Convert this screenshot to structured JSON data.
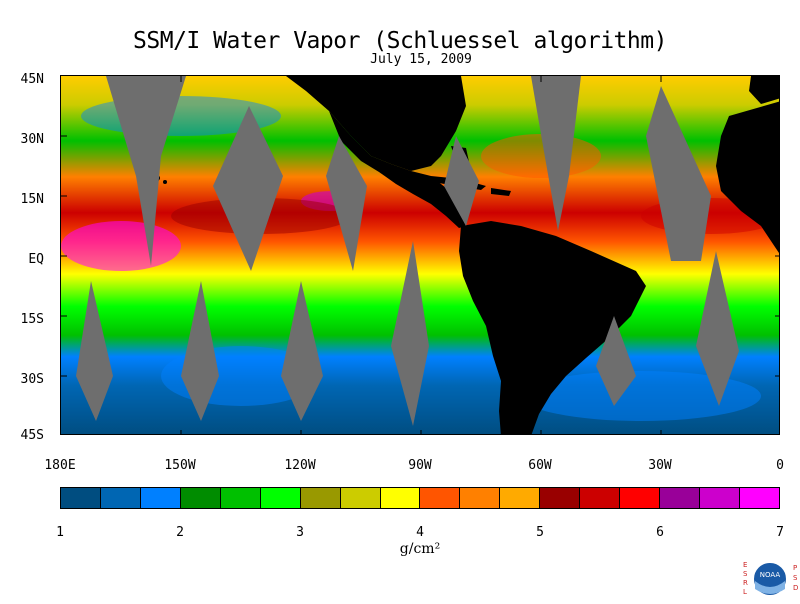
{
  "title": "SSM/I Water Vapor (Schluessel algorithm)",
  "date": "July 15, 2009",
  "lat_labels": [
    "45N",
    "30N",
    "15N",
    "EQ",
    "15S",
    "30S",
    "45S"
  ],
  "lon_labels": [
    "180E",
    "150W",
    "120W",
    "90W",
    "60W",
    "30W",
    "0"
  ],
  "colorbar": {
    "ticks": [
      "1",
      "2",
      "3",
      "4",
      "5",
      "6",
      "7"
    ],
    "unit": "g/cm²",
    "colors": [
      "#004d80",
      "#0066b3",
      "#0080ff",
      "#008c00",
      "#00c000",
      "#00ff00",
      "#999900",
      "#cccc00",
      "#ffff00",
      "#ff5500",
      "#ff8000",
      "#ffaa00",
      "#990000",
      "#cc0000",
      "#ff0000",
      "#990099",
      "#cc00cc",
      "#ff00ff"
    ]
  },
  "logo": {
    "left_letters": "ESRL",
    "right_letters": "PSD",
    "center_text": "NOAA"
  },
  "map": {
    "land_color": "#000000",
    "missing_color": "#6e6e6e"
  }
}
